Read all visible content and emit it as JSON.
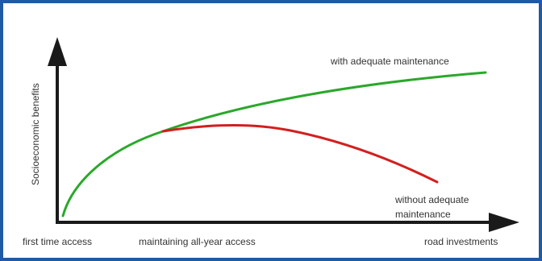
{
  "chart_data": {
    "type": "line",
    "title": "",
    "ylabel": "Socioeconomic benefits",
    "xlabel": "road investments",
    "x_axis_labels": [
      "first time access",
      "maintaining all-year access",
      "road investments"
    ],
    "grid": false,
    "legend": "none",
    "series": [
      {
        "name": "with adequate maintenance",
        "color": "#2aa82a",
        "description": "rises steeply from first time access, then continues increasing at a decreasing rate"
      },
      {
        "name": "without adequate maintenance",
        "color": "#d21f1f",
        "description": "follows the same rise until maintaining all-year access, then peaks and declines"
      }
    ]
  },
  "annotations": {
    "with_label": "with adequate maintenance",
    "without_label_line1": "without adequate",
    "without_label_line2": "maintenance"
  },
  "colors": {
    "border": "#1f5aa3",
    "axis": "#1a1a1a"
  }
}
